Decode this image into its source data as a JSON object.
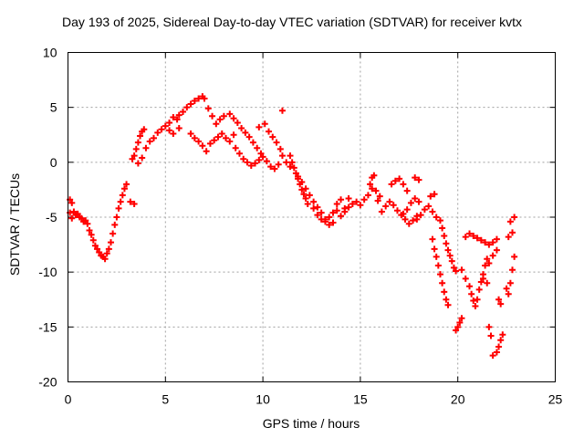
{
  "chart_data": {
    "type": "scatter",
    "title": "Day 193 of 2025, Sidereal Day-to-day VTEC variation (SDTVAR) for receiver kvtx",
    "xlabel": "GPS time / hours",
    "ylabel": "SDTVAR / TECUs",
    "xlim": [
      0,
      25
    ],
    "ylim": [
      -20,
      10
    ],
    "x_ticks": [
      0,
      5,
      10,
      15,
      20,
      25
    ],
    "y_ticks": [
      -20,
      -15,
      -10,
      -5,
      0,
      5,
      10
    ],
    "x_tick_labels": [
      "0",
      "5",
      "10",
      "15",
      "20",
      "25"
    ],
    "y_tick_labels": [
      "-20",
      "-15",
      "-10",
      "-5",
      "0",
      "5",
      "10"
    ],
    "grid": true,
    "legend": "none",
    "marker": "+",
    "color": "#ff0000",
    "series": [
      {
        "points": [
          [
            0.1,
            -3.4
          ],
          [
            0.2,
            -3.7
          ],
          [
            0.1,
            -4.6
          ],
          [
            0.2,
            -5.1
          ],
          [
            0.3,
            -4.5
          ],
          [
            0.4,
            -4.8
          ],
          [
            0.5,
            -4.7
          ],
          [
            0.6,
            -5.0
          ],
          [
            0.7,
            -5.1
          ],
          [
            0.8,
            -5.4
          ],
          [
            0.9,
            -5.3
          ],
          [
            1.0,
            -5.6
          ],
          [
            1.1,
            -6.2
          ],
          [
            1.2,
            -6.6
          ],
          [
            1.3,
            -7.1
          ],
          [
            1.4,
            -7.6
          ],
          [
            1.5,
            -7.9
          ],
          [
            1.6,
            -8.2
          ],
          [
            1.7,
            -8.5
          ],
          [
            1.8,
            -8.6
          ],
          [
            1.9,
            -8.8
          ],
          [
            2.0,
            -8.3
          ],
          [
            2.1,
            -7.9
          ],
          [
            2.2,
            -7.3
          ],
          [
            2.3,
            -6.5
          ],
          [
            2.4,
            -5.7
          ],
          [
            2.5,
            -5.0
          ],
          [
            2.6,
            -4.2
          ],
          [
            2.7,
            -3.6
          ],
          [
            2.8,
            -3.0
          ],
          [
            2.9,
            -2.4
          ],
          [
            3.0,
            -2.0
          ],
          [
            3.2,
            -3.6
          ],
          [
            3.4,
            -3.8
          ],
          [
            3.3,
            0.3
          ],
          [
            3.4,
            0.6
          ],
          [
            3.5,
            1.2
          ],
          [
            3.6,
            1.8
          ],
          [
            3.7,
            2.4
          ],
          [
            3.8,
            2.8
          ],
          [
            3.9,
            3.0
          ],
          [
            3.6,
            -0.1
          ],
          [
            3.8,
            0.4
          ],
          [
            4.0,
            1.3
          ],
          [
            4.2,
            1.9
          ],
          [
            4.4,
            2.2
          ],
          [
            4.6,
            2.7
          ],
          [
            4.8,
            3.0
          ],
          [
            5.0,
            3.3
          ],
          [
            5.2,
            3.6
          ],
          [
            5.4,
            4.1
          ],
          [
            5.6,
            3.9
          ],
          [
            5.2,
            2.9
          ],
          [
            5.4,
            2.6
          ],
          [
            5.7,
            3.1
          ],
          [
            5.7,
            4.3
          ],
          [
            5.9,
            4.6
          ],
          [
            6.1,
            5.0
          ],
          [
            6.3,
            5.3
          ],
          [
            6.5,
            5.6
          ],
          [
            6.7,
            5.8
          ],
          [
            6.9,
            6.0
          ],
          [
            7.0,
            5.8
          ],
          [
            7.2,
            4.9
          ],
          [
            7.4,
            4.2
          ],
          [
            6.3,
            2.6
          ],
          [
            6.5,
            2.2
          ],
          [
            6.7,
            1.9
          ],
          [
            6.9,
            1.5
          ],
          [
            7.1,
            1.0
          ],
          [
            7.3,
            1.7
          ],
          [
            7.5,
            2.0
          ],
          [
            7.7,
            2.3
          ],
          [
            7.9,
            2.6
          ],
          [
            8.1,
            2.2
          ],
          [
            8.3,
            1.9
          ],
          [
            8.5,
            2.5
          ],
          [
            7.6,
            3.5
          ],
          [
            7.8,
            3.9
          ],
          [
            8.0,
            4.2
          ],
          [
            8.3,
            4.4
          ],
          [
            8.5,
            4.0
          ],
          [
            8.7,
            3.6
          ],
          [
            8.9,
            3.1
          ],
          [
            9.1,
            2.7
          ],
          [
            9.3,
            2.3
          ],
          [
            9.5,
            1.8
          ],
          [
            9.7,
            1.3
          ],
          [
            9.9,
            0.8
          ],
          [
            8.6,
            1.3
          ],
          [
            8.8,
            0.8
          ],
          [
            9.0,
            0.3
          ],
          [
            9.2,
            0.0
          ],
          [
            9.4,
            -0.3
          ],
          [
            9.6,
            -0.1
          ],
          [
            9.8,
            0.2
          ],
          [
            10.0,
            0.5
          ],
          [
            10.2,
            0.1
          ],
          [
            10.4,
            -0.4
          ],
          [
            10.6,
            -0.6
          ],
          [
            10.8,
            -0.2
          ],
          [
            9.8,
            3.2
          ],
          [
            10.1,
            3.5
          ],
          [
            10.3,
            2.8
          ],
          [
            10.5,
            2.3
          ],
          [
            10.7,
            1.8
          ],
          [
            10.9,
            1.2
          ],
          [
            11.0,
            0.6
          ],
          [
            11.0,
            4.7
          ],
          [
            11.2,
            0.0
          ],
          [
            11.4,
            -0.4
          ],
          [
            11.4,
            0.6
          ],
          [
            11.5,
            0.0
          ],
          [
            11.6,
            -0.5
          ],
          [
            11.7,
            -1.0
          ],
          [
            11.8,
            -1.5
          ],
          [
            11.9,
            -2.0
          ],
          [
            12.0,
            -2.5
          ],
          [
            12.1,
            -2.9
          ],
          [
            12.2,
            -3.3
          ],
          [
            12.3,
            -3.8
          ],
          [
            11.8,
            -1.3
          ],
          [
            12.0,
            -1.8
          ],
          [
            12.2,
            -2.4
          ],
          [
            12.4,
            -3.0
          ],
          [
            12.6,
            -3.6
          ],
          [
            12.8,
            -4.1
          ],
          [
            13.0,
            -4.6
          ],
          [
            13.2,
            -5.2
          ],
          [
            13.4,
            -5.7
          ],
          [
            13.6,
            -5.5
          ],
          [
            12.6,
            -4.2
          ],
          [
            12.8,
            -4.8
          ],
          [
            13.0,
            -5.2
          ],
          [
            13.2,
            -5.4
          ],
          [
            13.4,
            -5.0
          ],
          [
            13.6,
            -4.6
          ],
          [
            13.8,
            -4.4
          ],
          [
            14.0,
            -4.9
          ],
          [
            14.2,
            -4.5
          ],
          [
            14.4,
            -4.1
          ],
          [
            13.8,
            -3.8
          ],
          [
            14.0,
            -3.4
          ],
          [
            14.2,
            -4.2
          ],
          [
            14.4,
            -3.3
          ],
          [
            14.6,
            -3.8
          ],
          [
            14.8,
            -3.6
          ],
          [
            15.0,
            -3.9
          ],
          [
            15.2,
            -3.4
          ],
          [
            15.4,
            -3.0
          ],
          [
            15.6,
            -2.4
          ],
          [
            15.5,
            -2.0
          ],
          [
            15.6,
            -1.4
          ],
          [
            15.7,
            -1.2
          ],
          [
            15.8,
            -2.6
          ],
          [
            15.9,
            -3.5
          ],
          [
            16.0,
            -3.1
          ],
          [
            16.1,
            -4.5
          ],
          [
            16.3,
            -4.0
          ],
          [
            16.5,
            -3.6
          ],
          [
            16.7,
            -3.9
          ],
          [
            16.9,
            -4.4
          ],
          [
            17.1,
            -4.8
          ],
          [
            17.3,
            -5.2
          ],
          [
            17.5,
            -5.6
          ],
          [
            17.7,
            -5.3
          ],
          [
            17.9,
            -4.9
          ],
          [
            16.6,
            -2.0
          ],
          [
            16.8,
            -1.7
          ],
          [
            17.0,
            -1.5
          ],
          [
            17.2,
            -2.0
          ],
          [
            17.4,
            -2.6
          ],
          [
            17.2,
            -4.7
          ],
          [
            17.4,
            -4.3
          ],
          [
            17.6,
            -3.7
          ],
          [
            17.8,
            -3.3
          ],
          [
            18.0,
            -3.6
          ],
          [
            17.8,
            -1.4
          ],
          [
            18.0,
            -1.6
          ],
          [
            17.9,
            -5.2
          ],
          [
            18.1,
            -4.8
          ],
          [
            18.3,
            -4.3
          ],
          [
            18.5,
            -4.0
          ],
          [
            18.7,
            -4.5
          ],
          [
            18.9,
            -5.0
          ],
          [
            18.6,
            -3.1
          ],
          [
            18.8,
            -2.9
          ],
          [
            18.7,
            -7.0
          ],
          [
            18.8,
            -7.9
          ],
          [
            18.9,
            -8.6
          ],
          [
            19.0,
            -9.4
          ],
          [
            19.1,
            -10.2
          ],
          [
            19.2,
            -11.0
          ],
          [
            19.3,
            -11.8
          ],
          [
            19.4,
            -12.5
          ],
          [
            19.5,
            -13.0
          ],
          [
            19.1,
            -5.3
          ],
          [
            19.2,
            -6.0
          ],
          [
            19.3,
            -6.7
          ],
          [
            19.4,
            -7.4
          ],
          [
            19.5,
            -8.0
          ],
          [
            19.6,
            -8.5
          ],
          [
            19.7,
            -9.0
          ],
          [
            19.8,
            -9.6
          ],
          [
            19.9,
            -9.9
          ],
          [
            19.9,
            -15.3
          ],
          [
            20.0,
            -15.0
          ],
          [
            20.1,
            -14.6
          ],
          [
            20.2,
            -14.2
          ],
          [
            20.4,
            -6.8
          ],
          [
            20.6,
            -6.5
          ],
          [
            20.8,
            -6.7
          ],
          [
            21.0,
            -6.9
          ],
          [
            21.2,
            -7.1
          ],
          [
            21.4,
            -7.3
          ],
          [
            21.6,
            -7.5
          ],
          [
            21.8,
            -7.3
          ],
          [
            22.0,
            -7.0
          ],
          [
            20.2,
            -9.8
          ],
          [
            20.4,
            -10.6
          ],
          [
            20.6,
            -11.3
          ],
          [
            20.7,
            -12.0
          ],
          [
            20.8,
            -12.6
          ],
          [
            20.9,
            -13.1
          ],
          [
            21.0,
            -12.5
          ],
          [
            21.1,
            -11.6
          ],
          [
            21.2,
            -10.9
          ],
          [
            21.3,
            -10.2
          ],
          [
            21.4,
            -9.4
          ],
          [
            21.5,
            -8.8
          ],
          [
            21.3,
            -10.6
          ],
          [
            21.5,
            -11.0
          ],
          [
            21.6,
            -15.0
          ],
          [
            21.7,
            -15.8
          ],
          [
            21.8,
            -17.6
          ],
          [
            22.0,
            -17.3
          ],
          [
            22.1,
            -16.8
          ],
          [
            22.2,
            -16.2
          ],
          [
            22.3,
            -15.7
          ],
          [
            21.6,
            -9.2
          ],
          [
            21.8,
            -8.5
          ],
          [
            22.0,
            -8.0
          ],
          [
            22.1,
            -12.5
          ],
          [
            22.2,
            -12.9
          ],
          [
            22.5,
            -11.5
          ],
          [
            22.6,
            -12.0
          ],
          [
            22.7,
            -11.0
          ],
          [
            22.8,
            -9.8
          ],
          [
            22.9,
            -8.6
          ],
          [
            22.6,
            -6.8
          ],
          [
            22.8,
            -6.4
          ],
          [
            22.7,
            -5.4
          ],
          [
            22.9,
            -5.0
          ]
        ]
      }
    ]
  }
}
